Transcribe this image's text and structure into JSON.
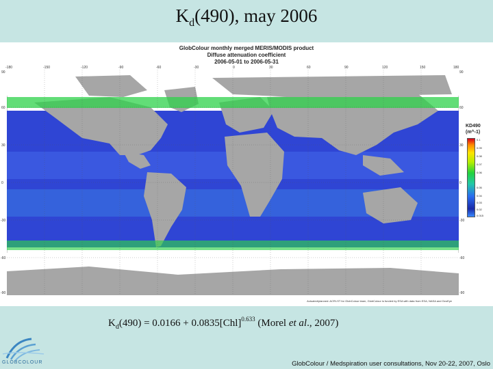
{
  "slide": {
    "title_main": "K",
    "title_sub": "d",
    "title_rest": "(490), may 2006"
  },
  "map": {
    "header_line1": "GlobColour monthly merged MERIS/MODIS product",
    "header_line2": "Diffuse attenuation coefficient",
    "header_line3": "2006-05-01 to 2006-05-31",
    "top_ticks": [
      "-180",
      "-150",
      "-120",
      "-90",
      "-60",
      "-30",
      "0",
      "30",
      "60",
      "90",
      "120",
      "150",
      "180"
    ],
    "left_ticks": [
      "90",
      "60",
      "30",
      "0",
      "-30",
      "-60",
      "-90"
    ],
    "right_ticks": [
      "90",
      "60",
      "30",
      "0",
      "-30",
      "-60",
      "-90"
    ],
    "credit": "Actuated/planned: ACRI-ST for GlobColour team, GlobColour is funded by ESA with data from ESA, NASA and GeoEye",
    "colors": {
      "land": "#a6a6a6",
      "ocean_low": "#2a3ed0",
      "ocean_high": "#22cc44",
      "ice": "#ffffff"
    }
  },
  "legend": {
    "title_line1": "KD490",
    "title_line2": "(m^-1)",
    "ticks": [
      "0.1",
      "0.09",
      "0.08",
      "0.07",
      "0.06",
      "0.05",
      "0.04",
      "0.03",
      "0.02",
      "0.015"
    ]
  },
  "formula": {
    "k": "K",
    "k_sub": "d",
    "body": "(490) = 0.0166 + 0.0835[Chl]",
    "exponent": "0.633",
    "cite_open": " (Morel ",
    "cite_etal": "et al",
    "cite_close": "., 2007)"
  },
  "footer": {
    "text": "GlobColour / Medspiration user consultations, Nov 20-22, 2007, Oslo",
    "logo_text": "GLOBCOLOUR"
  }
}
